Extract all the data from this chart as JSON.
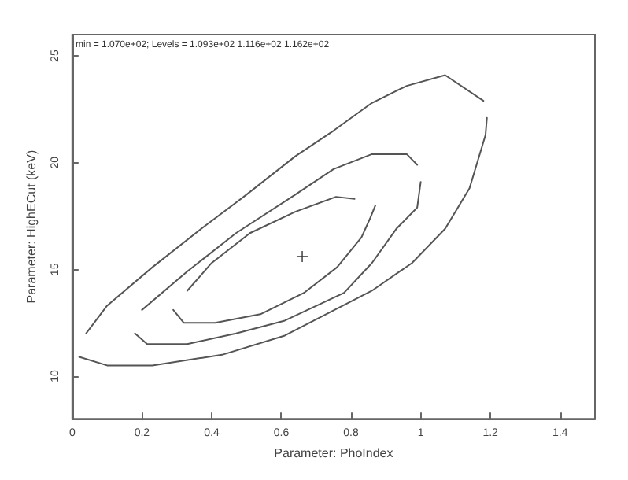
{
  "chart_data": {
    "type": "line",
    "xlabel": "Parameter: PhoIndex",
    "ylabel": "Parameter: HighECut (keV)",
    "annotations": [
      "min = 1.070e+02; Levels = 1.093e+02 1.116e+02 1.162e+02"
    ],
    "xlim": [
      0,
      1.5
    ],
    "ylim": [
      8,
      26
    ],
    "xticks": [
      0,
      0.2,
      0.4,
      0.6,
      0.8,
      1,
      1.2,
      1.4
    ],
    "yticks": [
      10,
      15,
      20,
      25
    ],
    "grid": false,
    "line_style": "solid",
    "marker": "none",
    "series": [
      {
        "color": "#555555",
        "x": [
          0.02,
          0.1,
          0.23,
          0.43,
          0.61,
          0.86,
          0.975,
          1.07,
          1.14,
          1.186,
          1.19
        ],
        "values": [
          10.9,
          10.5,
          10.5,
          11,
          11.9,
          14,
          15.3,
          16.9,
          18.8,
          21.3,
          22.1
        ]
      },
      {
        "color": "#555555",
        "x": [
          0.04,
          0.1,
          0.23,
          0.37,
          0.5,
          0.64,
          0.75,
          0.86,
          0.96,
          1.07,
          1.18
        ],
        "values": [
          12,
          13.3,
          15.1,
          16.9,
          18.5,
          20.3,
          21.5,
          22.8,
          23.6,
          24.1,
          22.9
        ]
      },
      {
        "color": "#555555",
        "x": [
          0.18,
          0.215,
          0.33,
          0.47,
          0.61,
          0.78,
          0.86,
          0.93,
          0.99,
          1
        ],
        "values": [
          12,
          11.5,
          11.5,
          12,
          12.6,
          13.9,
          15.3,
          16.9,
          17.9,
          19.1
        ]
      },
      {
        "color": "#555555",
        "x": [
          0.2,
          0.33,
          0.47,
          0.64,
          0.75,
          0.86,
          0.96,
          0.99
        ],
        "values": [
          13.1,
          14.9,
          16.7,
          18.5,
          19.7,
          20.4,
          20.4,
          19.9
        ]
      },
      {
        "color": "#555555",
        "x": [
          0.29,
          0.32,
          0.41,
          0.54,
          0.665,
          0.76,
          0.83,
          0.855,
          0.87
        ],
        "values": [
          13.1,
          12.5,
          12.5,
          12.9,
          13.9,
          15.1,
          16.5,
          17.4,
          18
        ]
      },
      {
        "color": "#555555",
        "x": [
          0.33,
          0.4,
          0.51,
          0.64,
          0.757,
          0.81
        ],
        "values": [
          14,
          15.3,
          16.7,
          17.7,
          18.4,
          18.3
        ]
      },
      {
        "type": "scatter",
        "marker": "cross",
        "color": "#000000",
        "x": [
          0.66
        ],
        "values": [
          15.6
        ]
      }
    ]
  }
}
